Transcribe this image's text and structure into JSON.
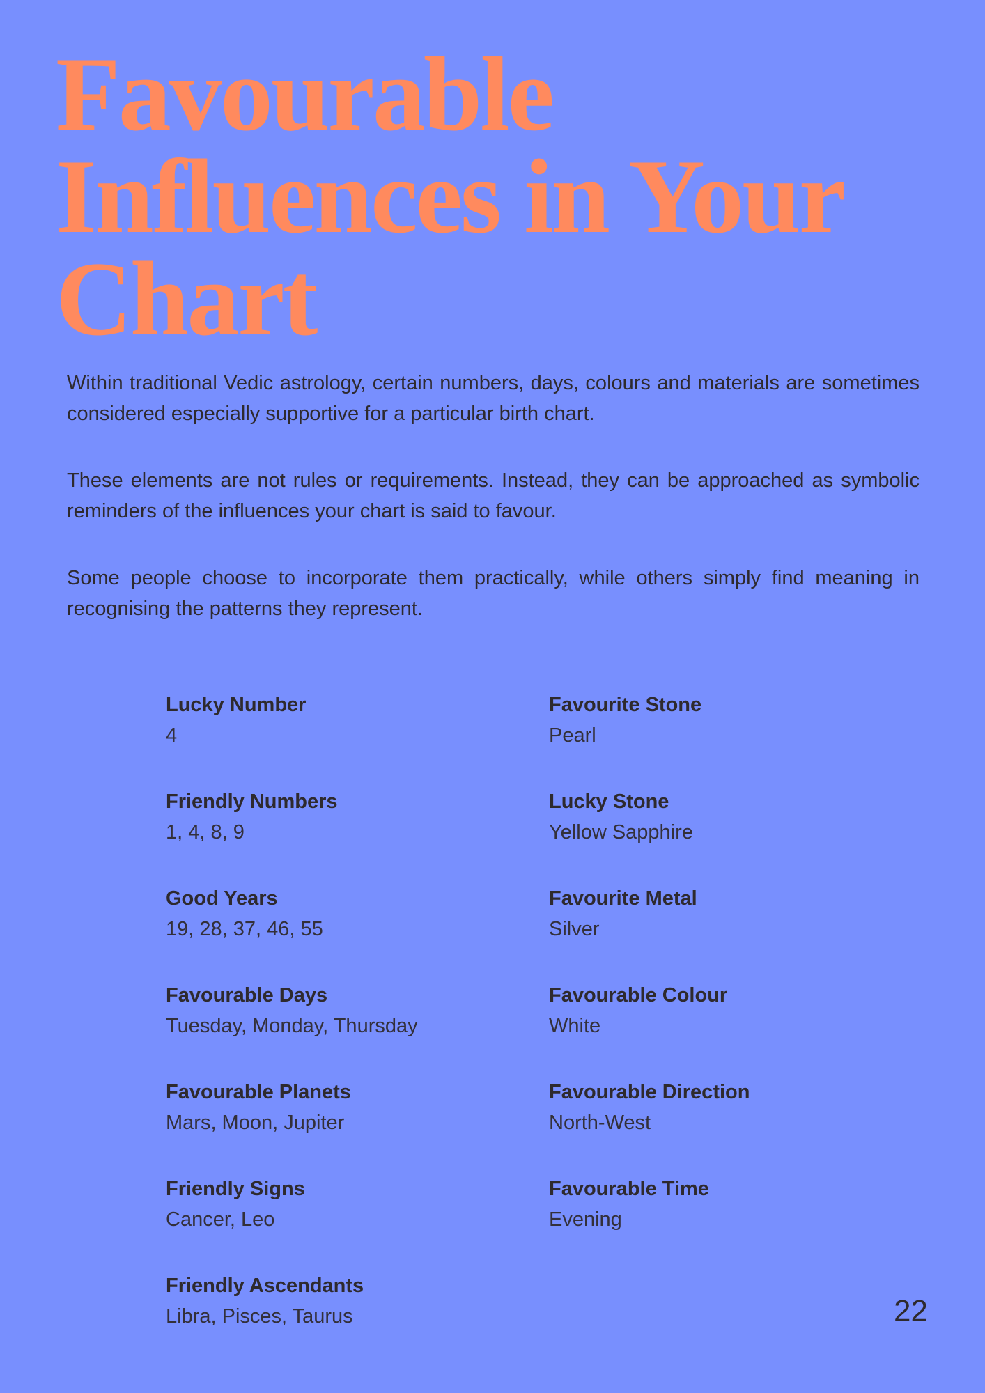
{
  "title_lines": [
    "Favourable",
    "Influences in Your",
    "Chart"
  ],
  "paragraphs": [
    "Within traditional Vedic astrology, certain numbers, days, colours and materials are sometimes considered especially supportive for a particular birth chart.",
    "These elements are not rules or requirements. Instead, they can be approached as symbolic reminders of the influences your chart is said to favour.",
    "Some people choose to incorporate them practically, while others simply find meaning in recognising the patterns they represent."
  ],
  "left_items": [
    {
      "label": "Lucky Number",
      "value": "4"
    },
    {
      "label": "Friendly Numbers",
      "value": "1, 4, 8, 9"
    },
    {
      "label": "Good Years",
      "value": "19, 28, 37, 46, 55"
    },
    {
      "label": "Favourable Days",
      "value": "Tuesday, Monday, Thursday"
    },
    {
      "label": "Favourable Planets",
      "value": "Mars, Moon, Jupiter"
    },
    {
      "label": "Friendly Signs",
      "value": "Cancer, Leo"
    },
    {
      "label": "Friendly Ascendants",
      "value": "Libra, Pisces, Taurus"
    }
  ],
  "right_items": [
    {
      "label": "Favourite Stone",
      "value": "Pearl"
    },
    {
      "label": "Lucky Stone",
      "value": "Yellow Sapphire"
    },
    {
      "label": "Favourite Metal",
      "value": "Silver"
    },
    {
      "label": "Favourable Colour",
      "value": "White"
    },
    {
      "label": "Favourable Direction",
      "value": "North-West"
    },
    {
      "label": "Favourable Time",
      "value": "Evening"
    }
  ],
  "page_number": "22",
  "colors": {
    "background": "#788ffe",
    "title": "#ff8a5e",
    "text": "#2e2a2e"
  }
}
